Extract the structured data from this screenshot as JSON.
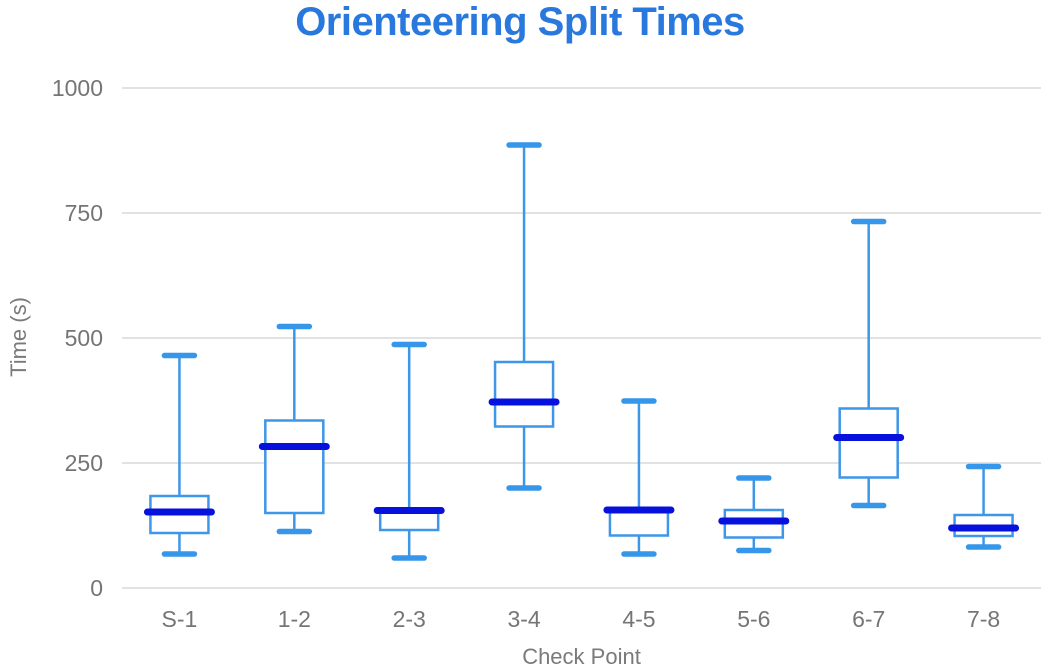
{
  "colors": {
    "title": "#2878dd",
    "box_stroke": "#3e96e8",
    "whisker": "#3e96e8",
    "cap": "#3596ea",
    "median": "#0711dd",
    "grid": "#e2e2e2",
    "axis_text": "#757575"
  },
  "chart_data": {
    "type": "boxplot",
    "title": "Orienteering Split Times",
    "xlabel": "Check Point",
    "ylabel": "Time (s)",
    "ylim": [
      0,
      1000
    ],
    "yticks": [
      0,
      250,
      500,
      750,
      1000
    ],
    "grid": "horizontal",
    "legend": "none",
    "categories": [
      "S-1",
      "1-2",
      "2-3",
      "3-4",
      "4-5",
      "5-6",
      "6-7",
      "7-8"
    ],
    "boxes": [
      {
        "category": "S-1",
        "min": 68,
        "q1": 110,
        "median": 152,
        "q3": 184,
        "max": 465
      },
      {
        "category": "1-2",
        "min": 113,
        "q1": 150,
        "median": 283,
        "q3": 335,
        "max": 523
      },
      {
        "category": "2-3",
        "min": 60,
        "q1": 116,
        "median": 155,
        "q3": 158,
        "max": 487
      },
      {
        "category": "3-4",
        "min": 200,
        "q1": 323,
        "median": 372,
        "q3": 452,
        "max": 886
      },
      {
        "category": "4-5",
        "min": 68,
        "q1": 105,
        "median": 156,
        "q3": 160,
        "max": 374
      },
      {
        "category": "5-6",
        "min": 75,
        "q1": 101,
        "median": 134,
        "q3": 156,
        "max": 220
      },
      {
        "category": "6-7",
        "min": 165,
        "q1": 221,
        "median": 301,
        "q3": 359,
        "max": 733
      },
      {
        "category": "7-8",
        "min": 82,
        "q1": 104,
        "median": 120,
        "q3": 146,
        "max": 243
      }
    ]
  }
}
